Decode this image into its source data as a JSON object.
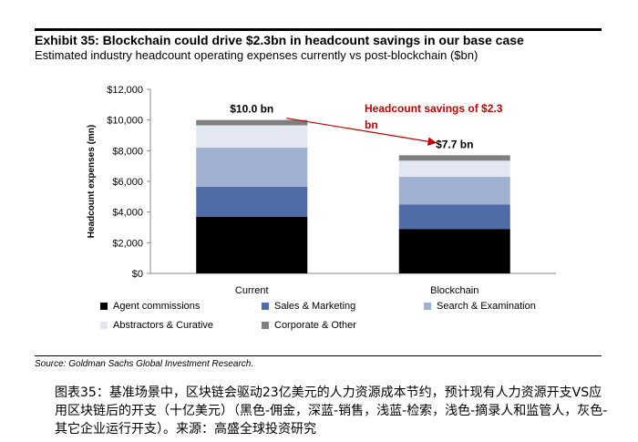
{
  "header": {
    "title": "Exhibit 35: Blockchain could drive $2.3bn in headcount savings in our base case",
    "subtitle": "Estimated industry headcount operating expenses currently vs post-blockchain ($bn)"
  },
  "chart_data": {
    "type": "bar",
    "stacked": true,
    "categories": [
      "Current",
      "Blockchain"
    ],
    "ylabel": "Headcount expenses (mn)",
    "xlabel": "",
    "ylim": [
      0,
      12000
    ],
    "yticks": [
      "$0",
      "$2,000",
      "$4,000",
      "$6,000",
      "$8,000",
      "$10,000",
      "$12,000"
    ],
    "series": [
      {
        "name": "Agent commissions",
        "values": [
          3700,
          2900
        ],
        "color": "#000000"
      },
      {
        "name": "Sales & Marketing",
        "values": [
          1950,
          1600
        ],
        "color": "#4f6ba8"
      },
      {
        "name": "Search & Examination",
        "values": [
          2550,
          1800
        ],
        "color": "#9fb0d0"
      },
      {
        "name": "Abstractors & Curative",
        "values": [
          1450,
          1050
        ],
        "color": "#e3e7f2"
      },
      {
        "name": "Corporate & Other",
        "values": [
          350,
          350
        ],
        "color": "#7f7f7f"
      }
    ],
    "totals": [
      {
        "label": "$10.0 bn"
      },
      {
        "label": "$7.7 bn"
      }
    ],
    "annotation": {
      "text_line1": "Headcount savings of $2.3",
      "text_line2": "bn",
      "color": "#c00000"
    },
    "grid": false,
    "legend_position": "bottom"
  },
  "legend": {
    "items": [
      {
        "label": "Agent commissions",
        "color": "#000000"
      },
      {
        "label": "Sales & Marketing",
        "color": "#4f6ba8"
      },
      {
        "label": "Search & Examination",
        "color": "#9fb0d0"
      },
      {
        "label": "Abstractors & Curative",
        "color": "#e3e7f2"
      },
      {
        "label": "Corporate & Other",
        "color": "#7f7f7f"
      }
    ]
  },
  "footer": {
    "source": "Source: Goldman Sachs Global Investment Research."
  },
  "caption": {
    "text": "图表35：基准场景中，区块链会驱动23亿美元的人力资源成本节约，预计现有人力资源开支VS应用区块链后的开支（十亿美元）（黑色-佣金，深蓝-销售，浅蓝-检索，浅色-摘录人和监管人，灰色-其它企业运行开支）。来源：高盛全球投资研究"
  }
}
